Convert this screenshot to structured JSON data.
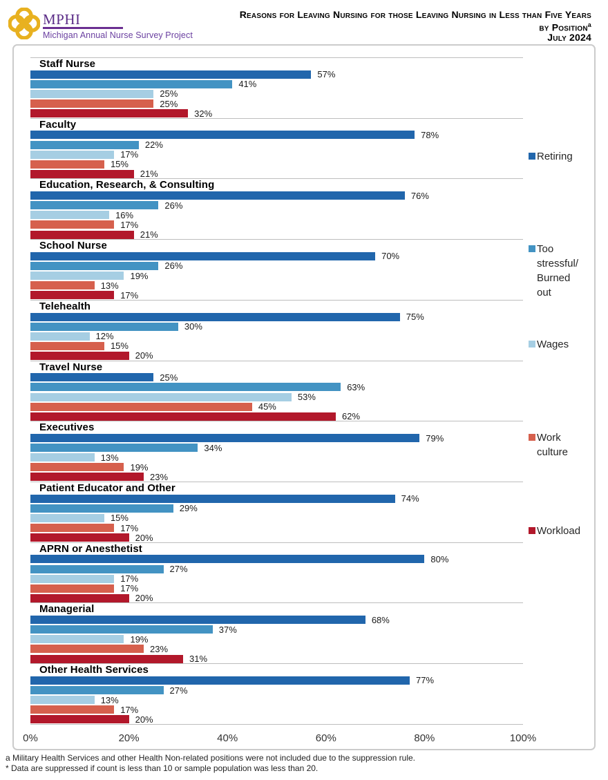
{
  "header": {
    "org": "MPHI",
    "org_subtitle": "Michigan Annual Nurse Survey Project",
    "title_line1": "Reasons for Leaving Nursing for those Leaving Nursing in Less than Five Years",
    "title_line2": "by Position",
    "title_line2_superscript": "a",
    "title_line3": "July 2024"
  },
  "chart_data": {
    "type": "bar",
    "orientation": "horizontal",
    "unit": "%",
    "xlim": [
      0,
      100
    ],
    "x_ticks": [
      "0%",
      "20%",
      "40%",
      "60%",
      "80%",
      "100%"
    ],
    "grid": false,
    "legend_position": "right",
    "series": [
      {
        "name": "Retiring",
        "color": "#2166AC"
      },
      {
        "name": "Too stressful/ Burned out",
        "color": "#4393C3"
      },
      {
        "name": "Wages",
        "color": "#A6CEE3"
      },
      {
        "name": "Work culture",
        "color": "#D6604D"
      },
      {
        "name": "Workload",
        "color": "#B2182B"
      }
    ],
    "groups": [
      {
        "label": "Staff Nurse",
        "values": [
          57,
          41,
          25,
          25,
          32
        ]
      },
      {
        "label": "Faculty",
        "values": [
          78,
          22,
          17,
          15,
          21
        ]
      },
      {
        "label": "Education, Research, & Consulting",
        "values": [
          76,
          26,
          16,
          17,
          21
        ]
      },
      {
        "label": "School Nurse",
        "values": [
          70,
          26,
          19,
          13,
          17
        ]
      },
      {
        "label": "Telehealth",
        "values": [
          75,
          30,
          12,
          15,
          20
        ]
      },
      {
        "label": "Travel Nurse",
        "values": [
          25,
          63,
          53,
          45,
          62
        ]
      },
      {
        "label": "Executives",
        "values": [
          79,
          34,
          13,
          19,
          23
        ]
      },
      {
        "label": "Patient Educator and Other",
        "values": [
          74,
          29,
          15,
          17,
          20
        ]
      },
      {
        "label": "APRN or Anesthetist",
        "values": [
          80,
          27,
          17,
          17,
          20
        ]
      },
      {
        "label": "Managerial",
        "values": [
          68,
          37,
          19,
          23,
          31
        ]
      },
      {
        "label": "Other Health Services",
        "values": [
          77,
          27,
          13,
          17,
          20
        ]
      }
    ],
    "legend_items": [
      {
        "lines": [
          "Retiring"
        ],
        "color": "#2166AC"
      },
      {
        "lines": [
          "Too",
          "stressful/",
          "Burned",
          "out"
        ],
        "color": "#4393C3"
      },
      {
        "lines": [
          "Wages"
        ],
        "color": "#A6CEE3"
      },
      {
        "lines": [
          "Work",
          "culture"
        ],
        "color": "#D6604D"
      },
      {
        "lines": [
          "Workload"
        ],
        "color": "#B2182B"
      }
    ]
  },
  "footnotes": [
    "a Military Health Services and other Health Non-related positions were not included due to the suppression rule.",
    "* Data are suppressed if count is less than 10 or sample population was less than 20."
  ]
}
